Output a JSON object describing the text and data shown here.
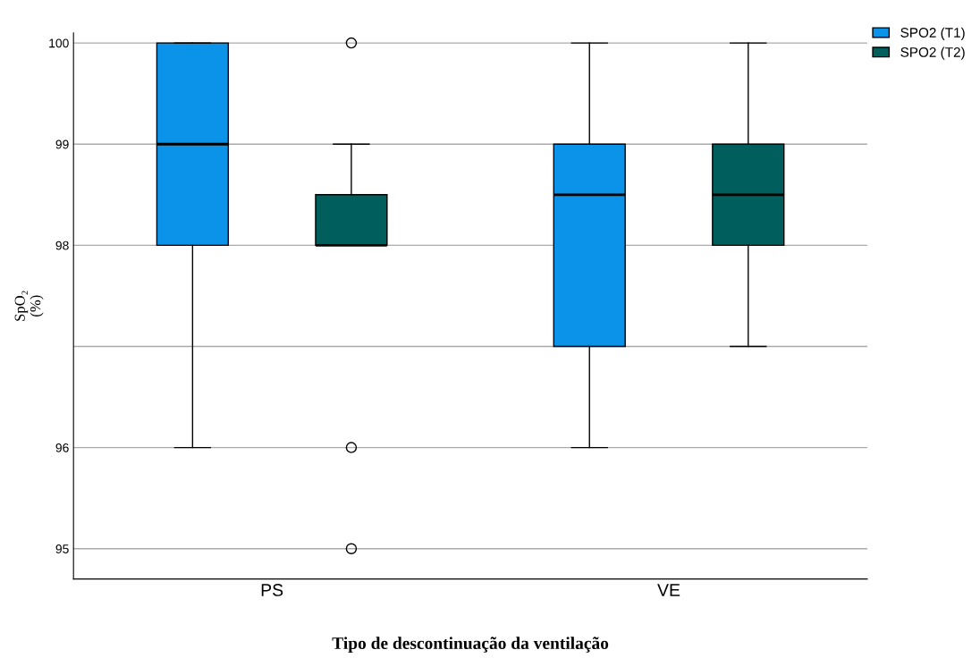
{
  "chart_data": {
    "type": "box",
    "xlabel": "Tipo de descontinuação da ventilação",
    "ylabel": "SpO₂\n(%)",
    "categories": [
      "PS",
      "VE"
    ],
    "series": [
      {
        "name": "SPO2 (T1)",
        "color": "#0a93e8",
        "boxes": [
          {
            "low": 96,
            "q1": 98,
            "median": 99,
            "q3": 100,
            "high": 100
          },
          {
            "low": 96,
            "q1": 97,
            "median": 98.5,
            "q3": 99,
            "high": 100
          }
        ]
      },
      {
        "name": "SPO2 (T2)",
        "color": "#005e5c",
        "boxes": [
          {
            "low": 98,
            "q1": 98,
            "median": 98,
            "q3": 98.5,
            "high": 99,
            "outliers": [
              100,
              96,
              95
            ]
          },
          {
            "low": 97,
            "q1": 98,
            "median": 98.5,
            "q3": 99,
            "high": 100
          }
        ]
      }
    ],
    "ylim": [
      94.7,
      100.1
    ],
    "yticks": [
      95,
      96,
      {
        "value": 97,
        "label": null
      },
      98,
      99,
      100
    ],
    "grid": "y",
    "legend": "top right"
  }
}
